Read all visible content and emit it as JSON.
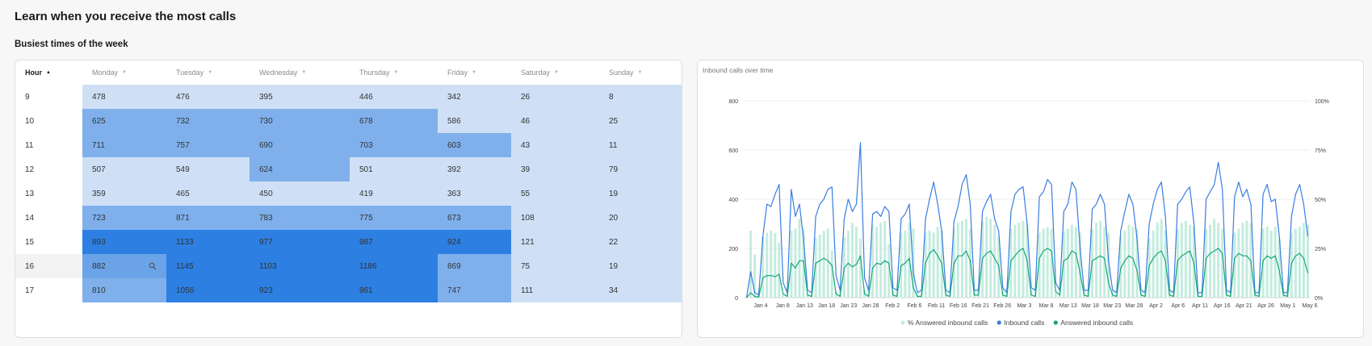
{
  "page": {
    "title": "Learn when you receive the most calls",
    "section_title": "Busiest times of the week"
  },
  "heatmap": {
    "columns": [
      {
        "label": "Hour",
        "sorted": true
      },
      {
        "label": "Monday"
      },
      {
        "label": "Tuesday"
      },
      {
        "label": "Wednesday"
      },
      {
        "label": "Thursday"
      },
      {
        "label": "Friday"
      },
      {
        "label": "Saturday"
      },
      {
        "label": "Sunday"
      }
    ],
    "rows": [
      {
        "hour": "9",
        "values": [
          "478",
          "476",
          "395",
          "446",
          "342",
          "26",
          "8"
        ],
        "levels": [
          1,
          1,
          1,
          1,
          1,
          1,
          1
        ]
      },
      {
        "hour": "10",
        "values": [
          "625",
          "732",
          "730",
          "678",
          "586",
          "46",
          "25"
        ],
        "levels": [
          2,
          2,
          2,
          2,
          1,
          1,
          1
        ]
      },
      {
        "hour": "11",
        "values": [
          "711",
          "757",
          "690",
          "703",
          "603",
          "43",
          "11"
        ],
        "levels": [
          2,
          2,
          2,
          2,
          2,
          1,
          1
        ]
      },
      {
        "hour": "12",
        "values": [
          "507",
          "549",
          "624",
          "501",
          "392",
          "39",
          "79"
        ],
        "levels": [
          1,
          1,
          2,
          1,
          1,
          1,
          1
        ]
      },
      {
        "hour": "13",
        "values": [
          "359",
          "465",
          "450",
          "419",
          "363",
          "55",
          "19"
        ],
        "levels": [
          1,
          1,
          1,
          1,
          1,
          1,
          1
        ]
      },
      {
        "hour": "14",
        "values": [
          "723",
          "871",
          "783",
          "775",
          "673",
          "108",
          "20"
        ],
        "levels": [
          2,
          2,
          2,
          2,
          2,
          1,
          1
        ]
      },
      {
        "hour": "15",
        "values": [
          "893",
          "1133",
          "977",
          "987",
          "924",
          "121",
          "22"
        ],
        "levels": [
          3,
          3,
          3,
          3,
          3,
          1,
          1
        ]
      },
      {
        "hour": "16",
        "values": [
          "882",
          "1145",
          "1103",
          "1186",
          "869",
          "75",
          "19"
        ],
        "levels": [
          4,
          3,
          3,
          3,
          2,
          1,
          1
        ],
        "hovered": true
      },
      {
        "hour": "17",
        "values": [
          "810",
          "1056",
          "923",
          "961",
          "747",
          "111",
          "34"
        ],
        "levels": [
          2,
          3,
          3,
          3,
          2,
          1,
          1
        ]
      }
    ],
    "level_colors": [
      "#ffffff",
      "#cfe0f6",
      "#7fb0ec",
      "#2d7fe2",
      "#6ba3e8"
    ],
    "hover_icon": "search-icon"
  },
  "chart": {
    "title": "Inbound calls over time",
    "legend": [
      {
        "label": "% Answered inbound calls",
        "color": "#c4ecdf"
      },
      {
        "label": "Inbound calls",
        "color": "#3a7de0"
      },
      {
        "label": "Answered inbound calls",
        "color": "#13a77a"
      }
    ]
  },
  "chart_data": {
    "type": "line",
    "title": "Inbound calls over time",
    "x_tick_labels": [
      "Jan 4",
      "Jan 8",
      "Jan 13",
      "Jan 18",
      "Jan 23",
      "Jan 28",
      "Feb 2",
      "Feb 6",
      "Feb 11",
      "Feb 16",
      "Feb 21",
      "Feb 26",
      "Mar 3",
      "Mar 8",
      "Mar 13",
      "Mar 18",
      "Mar 23",
      "Mar 28",
      "Apr 2",
      "Apr 6",
      "Apr 11",
      "Apr 16",
      "Apr 21",
      "Apr 26",
      "May 1",
      "May 6"
    ],
    "y_left": {
      "ticks": [
        "0",
        "200",
        "400",
        "600",
        "800"
      ],
      "range": [
        0,
        800
      ]
    },
    "y_right": {
      "ticks": [
        "0%",
        "25%",
        "50%",
        "75%",
        "100%"
      ],
      "range": [
        0,
        100
      ]
    },
    "grid": true,
    "legend_position": "bottom",
    "series": [
      {
        "name": "% Answered inbound calls",
        "kind": "bar",
        "axis": "right",
        "values": [
          0,
          34,
          22,
          5,
          31,
          33,
          34,
          33,
          28,
          2,
          5,
          34,
          35,
          40,
          35,
          2,
          3,
          30,
          32,
          34,
          35,
          24,
          3,
          4,
          31,
          34,
          38,
          36,
          30,
          4,
          5,
          37,
          36,
          38,
          39,
          27,
          4,
          4,
          33,
          34,
          38,
          35,
          2,
          4,
          33,
          34,
          33,
          36,
          34,
          3,
          4,
          35,
          38,
          39,
          40,
          35,
          4,
          5,
          39,
          41,
          40,
          37,
          31,
          4,
          5,
          35,
          37,
          38,
          39,
          37,
          4,
          5,
          33,
          35,
          36,
          35,
          3,
          4,
          34,
          35,
          37,
          36,
          33,
          4,
          4,
          35,
          38,
          39,
          36,
          33,
          4,
          4,
          31,
          34,
          37,
          36,
          35,
          3,
          4,
          30,
          34,
          38,
          40,
          34,
          4,
          4,
          35,
          38,
          39,
          37,
          36,
          3,
          4,
          35,
          37,
          40,
          38,
          35,
          4,
          4,
          33,
          35,
          38,
          39,
          38,
          4,
          4,
          35,
          36,
          34,
          36,
          30,
          4,
          4,
          33,
          35,
          36,
          38,
          37
        ]
      },
      {
        "name": "Inbound calls",
        "kind": "line",
        "axis": "left",
        "values": [
          0,
          105,
          20,
          10,
          250,
          380,
          370,
          420,
          460,
          60,
          20,
          440,
          330,
          380,
          240,
          30,
          20,
          330,
          380,
          400,
          440,
          450,
          90,
          30,
          320,
          400,
          350,
          380,
          630,
          80,
          30,
          340,
          350,
          330,
          370,
          350,
          40,
          30,
          320,
          340,
          380,
          100,
          20,
          30,
          320,
          400,
          470,
          380,
          270,
          30,
          20,
          310,
          370,
          460,
          500,
          380,
          30,
          30,
          350,
          390,
          420,
          320,
          270,
          40,
          20,
          350,
          420,
          440,
          450,
          300,
          40,
          30,
          410,
          430,
          480,
          460,
          60,
          30,
          350,
          380,
          470,
          440,
          200,
          30,
          30,
          360,
          380,
          420,
          380,
          150,
          30,
          20,
          270,
          350,
          420,
          380,
          240,
          30,
          20,
          300,
          380,
          440,
          470,
          330,
          30,
          20,
          380,
          400,
          430,
          450,
          300,
          20,
          20,
          400,
          430,
          460,
          550,
          440,
          30,
          20,
          410,
          470,
          410,
          440,
          380,
          20,
          20,
          420,
          460,
          390,
          400,
          250,
          20,
          20,
          330,
          420,
          460,
          380,
          250
        ]
      },
      {
        "name": "Answered inbound calls",
        "kind": "line",
        "axis": "left",
        "values": [
          0,
          20,
          5,
          2,
          80,
          90,
          90,
          85,
          95,
          15,
          5,
          140,
          120,
          150,
          150,
          10,
          5,
          140,
          150,
          160,
          150,
          130,
          15,
          5,
          120,
          140,
          125,
          135,
          170,
          15,
          5,
          120,
          140,
          135,
          150,
          140,
          10,
          5,
          130,
          140,
          160,
          40,
          5,
          5,
          140,
          180,
          195,
          170,
          140,
          10,
          5,
          140,
          170,
          170,
          190,
          150,
          10,
          10,
          160,
          180,
          190,
          160,
          130,
          10,
          5,
          150,
          170,
          190,
          200,
          150,
          10,
          5,
          160,
          190,
          200,
          190,
          25,
          10,
          150,
          160,
          190,
          180,
          100,
          10,
          5,
          150,
          160,
          170,
          160,
          60,
          10,
          5,
          120,
          150,
          170,
          160,
          110,
          10,
          5,
          130,
          160,
          180,
          190,
          150,
          10,
          5,
          150,
          170,
          180,
          190,
          140,
          5,
          5,
          160,
          180,
          190,
          200,
          180,
          10,
          5,
          160,
          180,
          170,
          170,
          150,
          10,
          5,
          150,
          170,
          160,
          170,
          110,
          10,
          5,
          140,
          170,
          180,
          160,
          100
        ]
      }
    ]
  }
}
